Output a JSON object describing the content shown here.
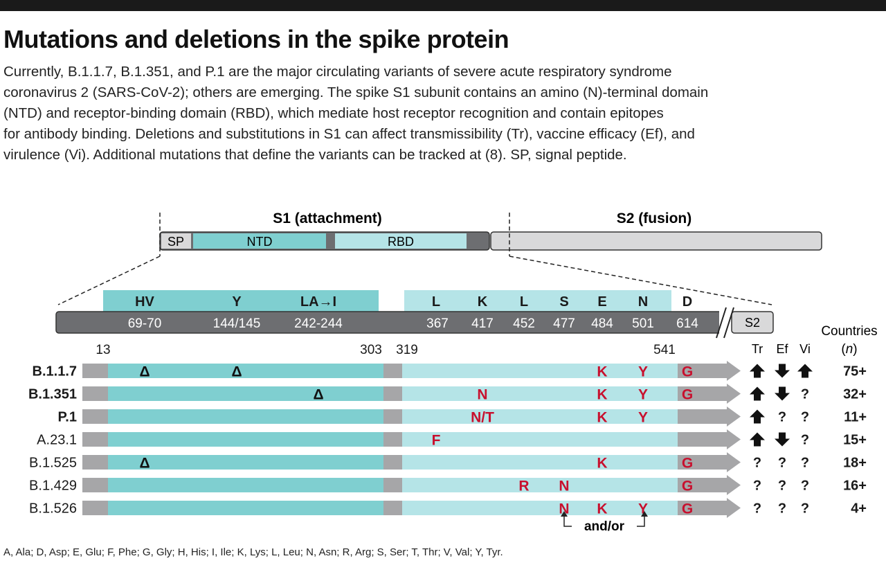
{
  "title": "Mutations and deletions in the spike protein",
  "description_lines": [
    "Currently, B.1.1.7, B.1.351, and P.1 are the major circulating variants of severe acute respiratory syndrome",
    "coronavirus 2 (SARS-CoV-2); others are emerging. The spike S1 subunit contains an amino (N)-terminal domain",
    "(NTD) and receptor-binding domain (RBD), which mediate host receptor recognition and contain epitopes",
    "for antibody binding. Deletions and substitutions in S1 can affect transmissibility (Tr), vaccine efficacy (Ef), and",
    "virulence (Vi). Additional mutations that define the variants can be tracked at (8). SP, signal peptide."
  ],
  "spike": {
    "s1_label": "S1 (attachment)",
    "s2_label": "S2 (fusion)",
    "sp_label": "SP",
    "ntd_label": "NTD",
    "rbd_label": "RBD"
  },
  "detail": {
    "sites": [
      {
        "aa": "HV",
        "pos": "69-70"
      },
      {
        "aa": "Y",
        "pos": "144/145"
      },
      {
        "aa": "LA→I",
        "pos": "242-244"
      },
      {
        "aa": "L",
        "pos": "367"
      },
      {
        "aa": "K",
        "pos": "417"
      },
      {
        "aa": "L",
        "pos": "452"
      },
      {
        "aa": "S",
        "pos": "477"
      },
      {
        "aa": "E",
        "pos": "484"
      },
      {
        "aa": "N",
        "pos": "501"
      },
      {
        "aa": "D",
        "pos": "614"
      }
    ],
    "s2_label": "S2",
    "boundaries": [
      "13",
      "303",
      "319",
      "541"
    ]
  },
  "columns": {
    "effects": [
      "Tr",
      "Ef",
      "Vi"
    ],
    "countries_line1": "Countries",
    "countries_line2": "(n)"
  },
  "colors": {
    "ntd": "#7fcfd0",
    "rbd": "#b5e4e7",
    "gray": "#a6a6a8",
    "dark_bar": "#6d6e71",
    "s2": "#d9d9da",
    "mutation_red": "#c8102e",
    "deletion": "#111111"
  },
  "variants": [
    {
      "name": "B.1.1.7",
      "bold": true,
      "mutations": [
        {
          "site": 0,
          "label": "Δ"
        },
        {
          "site": 1,
          "label": "Δ"
        },
        {
          "site": 7,
          "label": "K"
        },
        {
          "site": 8,
          "label": "Y"
        },
        {
          "site": 9,
          "label": "G"
        }
      ],
      "effects": [
        "up",
        "down",
        "up"
      ],
      "countries": "75+"
    },
    {
      "name": "B.1.351",
      "bold": true,
      "mutations": [
        {
          "site": 2,
          "label": "Δ"
        },
        {
          "site": 4,
          "label": "N"
        },
        {
          "site": 7,
          "label": "K"
        },
        {
          "site": 8,
          "label": "Y"
        },
        {
          "site": 9,
          "label": "G"
        }
      ],
      "effects": [
        "up",
        "down",
        "?"
      ],
      "countries": "32+"
    },
    {
      "name": "P.1",
      "bold": true,
      "mutations": [
        {
          "site": 4,
          "label": "N/T"
        },
        {
          "site": 7,
          "label": "K"
        },
        {
          "site": 8,
          "label": "Y"
        }
      ],
      "effects": [
        "up",
        "?",
        "?"
      ],
      "countries": "11+"
    },
    {
      "name": "A.23.1",
      "bold": false,
      "mutations": [
        {
          "site": 3,
          "label": "F"
        }
      ],
      "effects": [
        "up",
        "down",
        "?"
      ],
      "countries": "15+"
    },
    {
      "name": "B.1.525",
      "bold": false,
      "mutations": [
        {
          "site": 0,
          "label": "Δ"
        },
        {
          "site": 7,
          "label": "K"
        },
        {
          "site": 9,
          "label": "G"
        }
      ],
      "effects": [
        "?",
        "?",
        "?"
      ],
      "countries": "18+"
    },
    {
      "name": "B.1.429",
      "bold": false,
      "mutations": [
        {
          "site": 5,
          "label": "R"
        },
        {
          "site": 6,
          "label": "N"
        },
        {
          "site": 9,
          "label": "G"
        }
      ],
      "effects": [
        "?",
        "?",
        "?"
      ],
      "countries": "16+"
    },
    {
      "name": "B.1.526",
      "bold": false,
      "mutations": [
        {
          "site": 6,
          "label": "N"
        },
        {
          "site": 7,
          "label": "K"
        },
        {
          "site": 8,
          "label": "Y"
        },
        {
          "site": 9,
          "label": "G"
        }
      ],
      "effects": [
        "?",
        "?",
        "?"
      ],
      "countries": "4+"
    }
  ],
  "andor_label": "and/or",
  "footer": "A, Ala; D, Asp; E, Glu; F, Phe; G, Gly; H, His; I, Ile; K, Lys; L, Leu; N, Asn; R, Arg; S, Ser; T, Thr; V, Val; Y, Tyr."
}
